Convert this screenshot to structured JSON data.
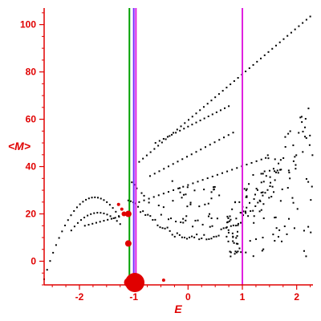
{
  "chart_data": {
    "type": "scatter",
    "title": "",
    "xlabel": "E",
    "ylabel": "<M>",
    "xlim": [
      -2.65,
      2.3
    ],
    "ylim": [
      -10,
      107
    ],
    "xticks": [
      -2,
      -1,
      0,
      1,
      2
    ],
    "yticks": [
      0,
      20,
      40,
      60,
      80,
      100
    ],
    "colors": {
      "axes": "#e00000",
      "points": "#000000",
      "highlight": "#e00000",
      "green_line": "#00a000",
      "purple_line": "#7a2aff",
      "magenta_line": "#e020e0"
    },
    "vlines": [
      {
        "name": "green",
        "x": -1.08,
        "color": "#00a000"
      },
      {
        "name": "purple",
        "x": -1.0,
        "color": "#7a2aff"
      },
      {
        "name": "magenta-left",
        "x": -0.96,
        "color": "#e020e0"
      },
      {
        "name": "magenta-right",
        "x": 1.0,
        "color": "#e020e0"
      }
    ],
    "highlights": [
      {
        "x": -0.98,
        "y": -9,
        "r": 12
      },
      {
        "x": -1.09,
        "y": -9,
        "r": 6
      },
      {
        "x": -1.1,
        "y": 7.5,
        "r": 4
      },
      {
        "x": -1.1,
        "y": 20,
        "r": 4
      },
      {
        "x": -1.18,
        "y": 20,
        "r": 3
      },
      {
        "x": -1.22,
        "y": 22,
        "r": 2
      },
      {
        "x": -1.28,
        "y": 24,
        "r": 2
      },
      {
        "x": -0.45,
        "y": -8,
        "r": 2
      }
    ]
  }
}
